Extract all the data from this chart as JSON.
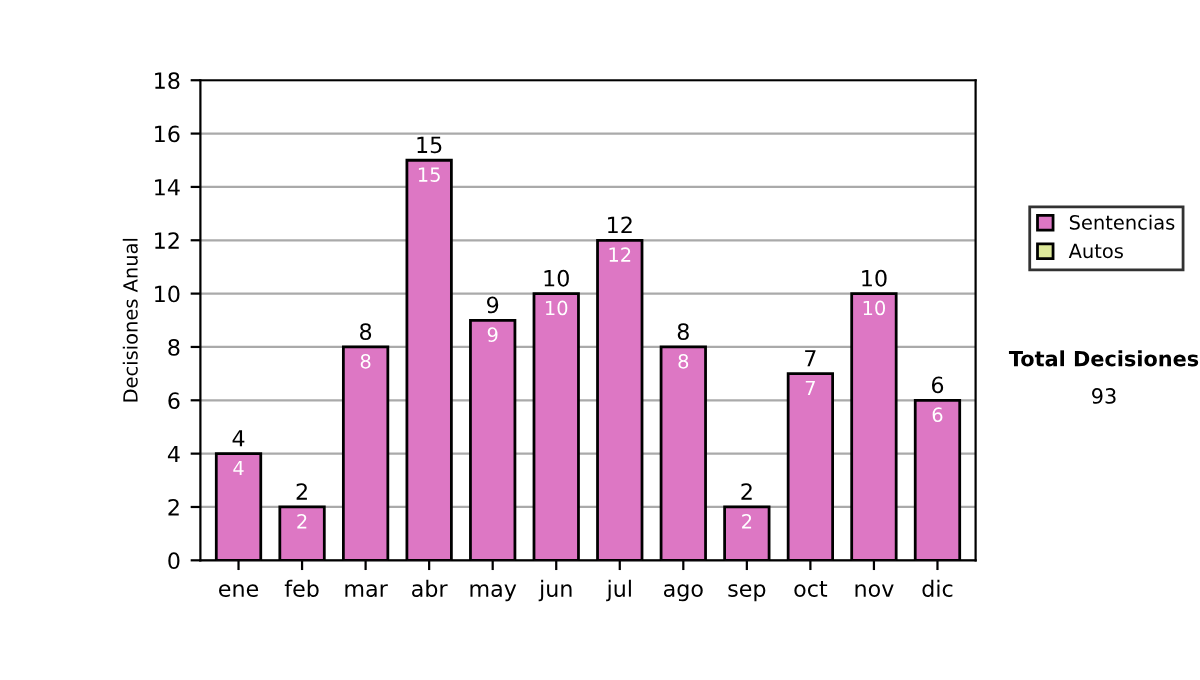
{
  "chart_data": {
    "type": "bar",
    "ylabel": "Decisiones Anual",
    "categories": [
      "ene",
      "feb",
      "mar",
      "abr",
      "may",
      "jun",
      "jul",
      "ago",
      "sep",
      "oct",
      "nov",
      "dic"
    ],
    "series": [
      {
        "name": "Sentencias",
        "color": "#dd77c4",
        "values": [
          4,
          2,
          8,
          15,
          9,
          10,
          12,
          8,
          2,
          7,
          10,
          6
        ]
      },
      {
        "name": "Autos",
        "color": "#dde89a",
        "values": [
          null,
          null,
          null,
          null,
          null,
          null,
          null,
          null,
          null,
          null,
          null,
          null
        ]
      }
    ],
    "stacked": true,
    "data_labels": true,
    "totals": [
      "4",
      "2",
      "8",
      "15",
      "9",
      "10",
      "12",
      "8",
      "2",
      "7",
      "10",
      "6"
    ],
    "ylim": [
      0,
      18
    ],
    "yticks": [
      0,
      2,
      4,
      6,
      8,
      10,
      12,
      14,
      16,
      18
    ],
    "grid": "y",
    "legend": "right",
    "annotations": [
      "Total Decisiones",
      "93"
    ]
  }
}
